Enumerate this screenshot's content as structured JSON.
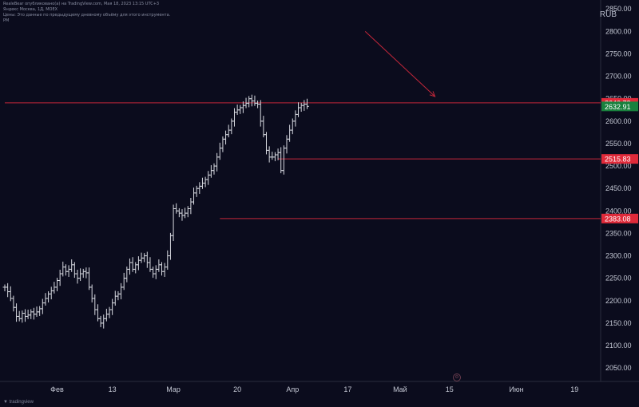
{
  "header": {
    "line1": "RealeBear опубликовано(а) на TradingView.com, Мая 18, 2023 13:15 UTC+3",
    "line2": "Яндекс Москва, 1Д, MOEX",
    "line3": "Цены: Это данные по предыдущему дневному объёму для этого инструмента.",
    "line4": "PM"
  },
  "currency": "RUB",
  "watermark": "▼ tradingview",
  "colors": {
    "background": "#0b0c1d",
    "candle": "#d7d9e0",
    "level_line": "#c3273a",
    "price_label_red": "#e02a3a",
    "price_label_green": "#19813e",
    "axis_text": "#c4c8d4"
  },
  "chart_data": {
    "type": "line",
    "title": "",
    "xlabel": "",
    "ylabel": "",
    "ylim": [
      2020,
      2870
    ],
    "y_ticks": [
      2050,
      2100,
      2150,
      2200,
      2250,
      2300,
      2350,
      2400,
      2450,
      2500,
      2550,
      2600,
      2650,
      2700,
      2750,
      2800,
      2850
    ],
    "y_tick_labels": [
      "2050.00",
      "2100.00",
      "2150.00",
      "2200.00",
      "2250.00",
      "2300.00",
      "2350.00",
      "2400.00",
      "2450.00",
      "2500.00",
      "2550.00",
      "2600.00",
      "2650.00",
      "2700.00",
      "2750.00",
      "2800.00",
      "2850.00"
    ],
    "x_tick_labels": [
      "Фев",
      "13",
      "Мар",
      "20",
      "Апр",
      "17",
      "Май",
      "15",
      "Июн",
      "19"
    ],
    "x_tick_index": [
      18,
      37,
      58,
      80,
      99,
      118,
      136,
      153,
      176,
      196
    ],
    "x_range": [
      0,
      205
    ],
    "close": [
      2230,
      2220,
      2205,
      2185,
      2165,
      2160,
      2172,
      2165,
      2168,
      2175,
      2170,
      2175,
      2182,
      2195,
      2205,
      2215,
      2222,
      2230,
      2245,
      2260,
      2275,
      2265,
      2270,
      2280,
      2260,
      2250,
      2260,
      2265,
      2262,
      2230,
      2205,
      2180,
      2160,
      2150,
      2160,
      2170,
      2180,
      2195,
      2210,
      2215,
      2230,
      2250,
      2270,
      2285,
      2270,
      2280,
      2290,
      2295,
      2300,
      2285,
      2270,
      2260,
      2270,
      2280,
      2265,
      2275,
      2300,
      2345,
      2405,
      2400,
      2395,
      2390,
      2395,
      2405,
      2420,
      2440,
      2450,
      2455,
      2462,
      2470,
      2480,
      2490,
      2500,
      2520,
      2540,
      2560,
      2570,
      2580,
      2600,
      2620,
      2625,
      2630,
      2635,
      2640,
      2650,
      2645,
      2640,
      2638,
      2600,
      2570,
      2535,
      2520,
      2520,
      2525,
      2530,
      2490,
      2540,
      2560,
      2580,
      2600,
      2615,
      2630,
      2635,
      2638,
      2633
    ],
    "levels": [
      {
        "value": 2640.78,
        "label": "2640.78",
        "style": "red"
      },
      {
        "value": 2632.91,
        "label": "2632.91",
        "style": "green"
      },
      {
        "value": 2515.83,
        "label": "2515.83",
        "style": "red"
      },
      {
        "value": 2383.08,
        "label": "2383.08",
        "style": "red"
      }
    ],
    "arrow": {
      "from": [
        124,
        2800
      ],
      "to": [
        148,
        2655
      ]
    },
    "grid": false,
    "legend": "none"
  }
}
